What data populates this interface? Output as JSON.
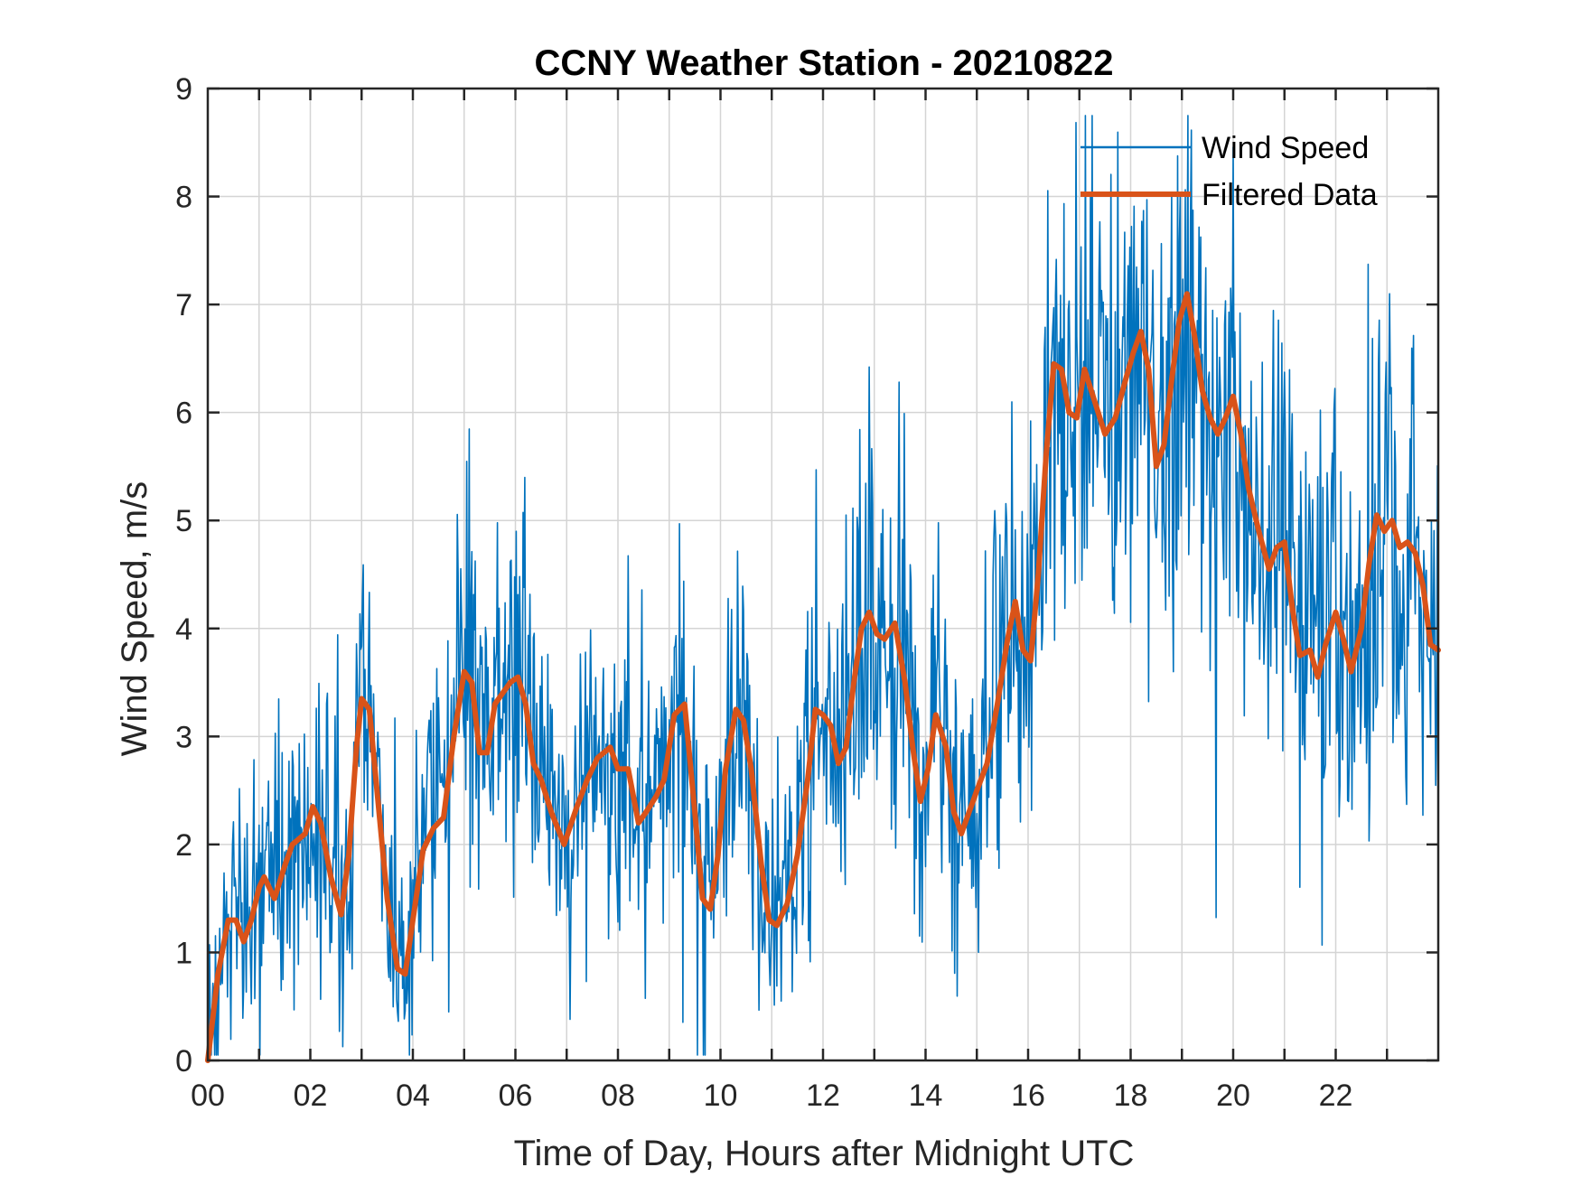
{
  "chart_data": {
    "type": "line",
    "title": "CCNY Weather Station - 20210822",
    "xlabel": "Time of Day, Hours after Midnight UTC",
    "ylabel": "Wind Speed, m/s",
    "xlim": [
      0,
      24
    ],
    "ylim": [
      0,
      9
    ],
    "grid": true,
    "legend_position": "top-right",
    "xticks": [
      0,
      2,
      4,
      6,
      8,
      10,
      12,
      14,
      16,
      18,
      20,
      22
    ],
    "xtick_labels": [
      "00",
      "02",
      "04",
      "06",
      "08",
      "10",
      "12",
      "14",
      "16",
      "18",
      "20",
      "22"
    ],
    "yticks": [
      0,
      1,
      2,
      3,
      4,
      5,
      6,
      7,
      8,
      9
    ],
    "ytick_labels": [
      "0",
      "1",
      "2",
      "3",
      "4",
      "5",
      "6",
      "7",
      "8",
      "9"
    ],
    "series": [
      {
        "name": "Wind Speed",
        "color": "#0072BD",
        "style": "thin-noisy",
        "note": "raw wind speed samples; oscillates around the filtered trend with amplitude ~1-2.5 m/s, max ~8.7 m/s near 18.8 h",
        "x": [
          0,
          1,
          2,
          3,
          4,
          5,
          6,
          7,
          8,
          9,
          10,
          11,
          12,
          13,
          14,
          15,
          16,
          17,
          18,
          19,
          20,
          21,
          22,
          23,
          24
        ],
        "values": [
          0.5,
          1.6,
          2.3,
          3.4,
          1.0,
          3.5,
          3.4,
          2.3,
          2.8,
          2.6,
          2.9,
          1.3,
          3.1,
          4.1,
          2.5,
          2.3,
          4.0,
          6.3,
          6.5,
          6.8,
          5.9,
          4.5,
          3.8,
          4.8,
          3.8
        ]
      },
      {
        "name": "Filtered Data",
        "color": "#D95319",
        "style": "thick",
        "x": [
          0,
          0.2,
          0.4,
          0.55,
          0.7,
          0.85,
          1.0,
          1.1,
          1.3,
          1.5,
          1.65,
          1.9,
          2.05,
          2.2,
          2.4,
          2.6,
          2.75,
          2.9,
          3.0,
          3.15,
          3.3,
          3.5,
          3.7,
          3.85,
          4.0,
          4.2,
          4.4,
          4.6,
          4.8,
          5.0,
          5.15,
          5.3,
          5.45,
          5.6,
          5.75,
          5.9,
          6.05,
          6.2,
          6.35,
          6.5,
          6.7,
          6.95,
          7.2,
          7.4,
          7.6,
          7.85,
          8.0,
          8.2,
          8.4,
          8.55,
          8.75,
          8.9,
          9.1,
          9.3,
          9.5,
          9.65,
          9.8,
          9.95,
          10.1,
          10.3,
          10.45,
          10.6,
          10.8,
          10.95,
          11.1,
          11.3,
          11.5,
          11.7,
          11.85,
          12.0,
          12.15,
          12.3,
          12.45,
          12.6,
          12.75,
          12.9,
          13.05,
          13.2,
          13.4,
          13.6,
          13.75,
          13.9,
          14.05,
          14.2,
          14.4,
          14.55,
          14.7,
          14.85,
          15.0,
          15.2,
          15.4,
          15.6,
          15.75,
          15.9,
          16.05,
          16.2,
          16.35,
          16.5,
          16.65,
          16.8,
          16.95,
          17.1,
          17.3,
          17.5,
          17.7,
          17.9,
          18.05,
          18.2,
          18.35,
          18.5,
          18.65,
          18.8,
          18.95,
          19.1,
          19.25,
          19.4,
          19.55,
          19.7,
          19.85,
          20.0,
          20.15,
          20.3,
          20.5,
          20.7,
          20.85,
          21.0,
          21.15,
          21.3,
          21.5,
          21.65,
          21.8,
          22.0,
          22.15,
          22.3,
          22.5,
          22.65,
          22.8,
          22.95,
          23.1,
          23.25,
          23.4,
          23.55,
          23.7,
          23.85,
          24.0
        ],
        "values": [
          0.0,
          0.8,
          1.3,
          1.3,
          1.1,
          1.3,
          1.6,
          1.7,
          1.5,
          1.8,
          2.0,
          2.1,
          2.35,
          2.2,
          1.7,
          1.35,
          1.9,
          2.9,
          3.35,
          3.25,
          2.5,
          1.5,
          0.85,
          0.8,
          1.3,
          1.95,
          2.15,
          2.25,
          3.0,
          3.6,
          3.5,
          2.85,
          2.85,
          3.3,
          3.4,
          3.5,
          3.55,
          3.3,
          2.75,
          2.6,
          2.3,
          2.0,
          2.35,
          2.6,
          2.8,
          2.9,
          2.7,
          2.7,
          2.2,
          2.3,
          2.45,
          2.6,
          3.2,
          3.3,
          2.3,
          1.5,
          1.4,
          1.9,
          2.7,
          3.25,
          3.15,
          2.7,
          1.8,
          1.3,
          1.25,
          1.45,
          1.9,
          2.6,
          3.25,
          3.2,
          3.1,
          2.75,
          2.9,
          3.5,
          4.0,
          4.15,
          3.95,
          3.9,
          4.05,
          3.5,
          2.9,
          2.4,
          2.7,
          3.2,
          2.9,
          2.3,
          2.1,
          2.3,
          2.5,
          2.75,
          3.3,
          3.9,
          4.25,
          3.8,
          3.7,
          4.5,
          5.6,
          6.45,
          6.4,
          6.0,
          5.95,
          6.4,
          6.1,
          5.8,
          5.95,
          6.3,
          6.55,
          6.75,
          6.4,
          5.5,
          5.7,
          6.3,
          6.85,
          7.1,
          6.7,
          6.2,
          5.95,
          5.8,
          5.95,
          6.15,
          5.8,
          5.3,
          4.9,
          4.55,
          4.75,
          4.8,
          4.2,
          3.75,
          3.8,
          3.55,
          3.85,
          4.15,
          3.9,
          3.6,
          4.0,
          4.6,
          5.05,
          4.9,
          5.0,
          4.75,
          4.8,
          4.7,
          4.4,
          3.85,
          3.8
        ]
      }
    ]
  }
}
